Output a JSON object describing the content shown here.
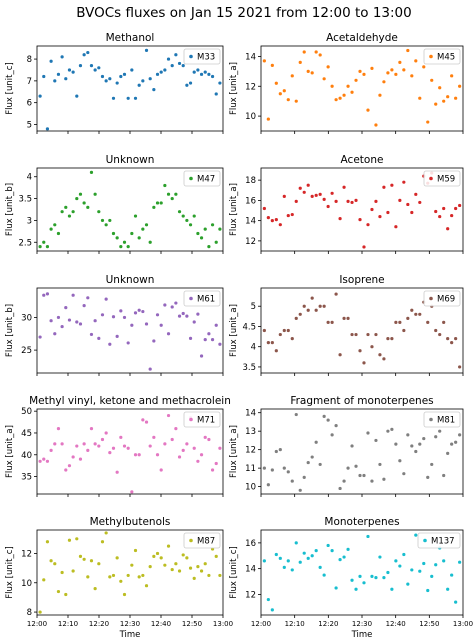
{
  "figure": {
    "suptitle": "BVOCs fluxes on Jan 15 2021 from 12:00 to 13:00"
  },
  "time_ticks": [
    "12:00",
    "12:10",
    "12:20",
    "12:30",
    "12:40",
    "12:50",
    "13:00"
  ],
  "xlabel": "Time",
  "chart_data": [
    {
      "type": "scatter",
      "title": "Methanol",
      "legend": "M33",
      "ylabel": "Flux [unit_c]",
      "color": "#1f77b4",
      "ylim": [
        4.7,
        8.6
      ],
      "yticks": [
        5,
        6,
        7,
        8
      ],
      "y": [
        6.3,
        7.2,
        4.8,
        7.9,
        7.0,
        7.3,
        8.1,
        7.1,
        7.5,
        7.4,
        6.3,
        7.7,
        8.2,
        8.3,
        7.7,
        7.5,
        7.6,
        7.2,
        7.0,
        7.1,
        6.2,
        6.9,
        7.2,
        7.3,
        6.2,
        7.5,
        6.2,
        6.8,
        7.0,
        8.4,
        7.1,
        6.6,
        7.3,
        7.4,
        7.5,
        8.0,
        7.7,
        8.2,
        7.8,
        7.7,
        6.8,
        6.9,
        7.4,
        7.5,
        7.3,
        7.4,
        7.3,
        7.2,
        6.4,
        6.9
      ]
    },
    {
      "type": "scatter",
      "title": "Acetaldehyde",
      "legend": "M45",
      "ylabel": "Flux [unit_a]",
      "color": "#ff7f0e",
      "ylim": [
        9.0,
        14.7
      ],
      "yticks": [
        10,
        12,
        14
      ],
      "y": [
        13.7,
        9.8,
        13.4,
        12.2,
        11.5,
        11.7,
        11.1,
        12.7,
        11.0,
        13.6,
        14.3,
        13.0,
        12.9,
        14.3,
        14.1,
        12.5,
        13.3,
        12.0,
        11.1,
        11.2,
        11.4,
        12.0,
        11.6,
        12.4,
        13.0,
        12.8,
        10.4,
        13.2,
        9.4,
        11.4,
        12.3,
        12.9,
        13.1,
        12.8,
        13.6,
        13.1,
        14.4,
        12.7,
        13.7,
        11.2,
        13.3,
        9.6,
        12.4,
        10.8,
        11.9,
        11.0,
        11.3,
        12.7,
        11.2,
        12.0
      ]
    },
    {
      "type": "scatter",
      "title": "Unknown",
      "legend": "M47",
      "ylabel": "Flux [unit_b]",
      "color": "#2ca02c",
      "ylim": [
        2.3,
        4.2
      ],
      "yticks": [
        2.5,
        3.0,
        3.5,
        4.0
      ],
      "y": [
        2.4,
        2.5,
        2.4,
        2.8,
        2.9,
        2.7,
        3.2,
        3.3,
        3.1,
        3.2,
        3.5,
        3.6,
        3.4,
        3.3,
        4.1,
        3.6,
        3.2,
        3.0,
        2.9,
        3.0,
        2.7,
        2.6,
        2.4,
        2.5,
        2.4,
        2.7,
        3.1,
        2.6,
        2.8,
        2.9,
        2.5,
        3.3,
        3.4,
        3.4,
        3.8,
        3.6,
        3.5,
        3.6,
        3.2,
        3.1,
        3.0,
        2.9,
        3.1,
        2.7,
        2.6,
        2.8,
        2.4,
        2.9,
        2.5,
        2.8
      ]
    },
    {
      "type": "scatter",
      "title": "Acetone",
      "legend": "M59",
      "ylabel": "Flux [unit_a]",
      "color": "#d62728",
      "ylim": [
        11.0,
        19.2
      ],
      "yticks": [
        12,
        14,
        16,
        18
      ],
      "y": [
        15.2,
        14.3,
        14.0,
        14.1,
        13.6,
        16.4,
        14.5,
        14.6,
        15.9,
        17.2,
        16.8,
        17.5,
        16.4,
        16.5,
        16.6,
        16.1,
        15.4,
        16.7,
        15.9,
        14.2,
        17.3,
        15.9,
        15.8,
        16.0,
        14.1,
        11.4,
        13.6,
        15.1,
        15.9,
        14.4,
        17.3,
        14.8,
        17.5,
        13.4,
        16.0,
        17.8,
        15.6,
        14.8,
        16.6,
        15.8,
        18.4,
        17.7,
        18.7,
        14.9,
        14.4,
        15.2,
        13.2,
        14.5,
        15.2,
        15.5
      ]
    },
    {
      "type": "scatter",
      "title": "Unknown",
      "legend": "M61",
      "ylabel": "Flux [unit_b]",
      "color": "#9467bd",
      "ylim": [
        21.5,
        34.5
      ],
      "yticks": [
        25,
        30
      ],
      "y": [
        27.0,
        33.4,
        33.6,
        29.5,
        27.5,
        30.0,
        28.6,
        31.5,
        29.6,
        33.4,
        29.3,
        29.0,
        31.8,
        33.0,
        27.4,
        29.5,
        26.8,
        30.4,
        32.8,
        25.9,
        30.1,
        27.1,
        31.0,
        30.0,
        26.1,
        28.8,
        30.7,
        31.1,
        30.9,
        29.0,
        22.1,
        26.4,
        30.4,
        28.8,
        31.9,
        27.5,
        31.6,
        32.2,
        30.2,
        30.6,
        30.2,
        26.8,
        29.3,
        30.5,
        24.1,
        26.6,
        27.5,
        26.6,
        28.8,
        25.9
      ]
    },
    {
      "type": "scatter",
      "title": "Isoprene",
      "legend": "M69",
      "ylabel": "Flux [unit_a]",
      "color": "#8c564b",
      "ylim": [
        3.35,
        5.45
      ],
      "yticks": [
        3.5,
        4.0,
        4.5,
        5.0
      ],
      "y": [
        4.4,
        4.1,
        4.1,
        3.9,
        4.3,
        4.4,
        4.4,
        4.2,
        4.7,
        4.8,
        5.0,
        4.9,
        5.2,
        4.9,
        5.0,
        5.0,
        4.6,
        4.6,
        5.3,
        3.8,
        4.7,
        4.7,
        4.3,
        4.3,
        3.9,
        3.6,
        4.3,
        4.0,
        4.3,
        3.8,
        3.7,
        4.2,
        4.2,
        4.6,
        4.6,
        4.4,
        4.7,
        4.9,
        4.8,
        4.8,
        5.1,
        4.6,
        5.0,
        4.4,
        4.3,
        4.6,
        4.2,
        4.1,
        4.2,
        3.5
      ]
    },
    {
      "type": "scatter",
      "title": "Methyl vinyl, ketone and methacrolein",
      "legend": "M71",
      "ylabel": "Flux [unit_a]",
      "color": "#e377c2",
      "ylim": [
        31.0,
        50.5
      ],
      "yticks": [
        35,
        40,
        45,
        50
      ],
      "y": [
        38.5,
        39.0,
        38.5,
        41.0,
        42.5,
        46.0,
        42.5,
        36.5,
        37.5,
        39.5,
        42.0,
        39.0,
        42.5,
        41.0,
        46.0,
        42.5,
        42.0,
        43.5,
        45.0,
        40.5,
        41.5,
        36.0,
        44.0,
        42.0,
        41.5,
        31.5,
        40.0,
        40.0,
        48.0,
        47.5,
        42.0,
        44.0,
        40.0,
        36.5,
        42.5,
        49.0,
        43.5,
        46.0,
        39.5,
        41.0,
        42.5,
        48.5,
        41.5,
        38.5,
        40.0,
        44.0,
        43.5,
        36.5,
        38.0,
        41.5
      ]
    },
    {
      "type": "scatter",
      "title": "Fragment of monoterpenes",
      "legend": "M81",
      "ylabel": "Flux [unit_a]",
      "color": "#7f7f7f",
      "ylim": [
        9.6,
        14.2
      ],
      "yticks": [
        10,
        11,
        12,
        13,
        14
      ],
      "y": [
        11.0,
        10.1,
        10.9,
        11.9,
        12.0,
        11.0,
        10.8,
        10.3,
        13.9,
        9.8,
        10.5,
        11.3,
        11.6,
        12.4,
        11.2,
        13.8,
        13.6,
        12.8,
        13.3,
        9.9,
        10.3,
        11.0,
        12.2,
        11.1,
        10.6,
        10.6,
        12.9,
        10.3,
        12.5,
        11.2,
        10.4,
        13.0,
        13.1,
        12.3,
        11.4,
        10.7,
        12.8,
        12.2,
        11.9,
        12.3,
        12.6,
        10.5,
        11.2,
        12.7,
        13.0,
        10.6,
        11.8,
        12.3,
        12.4,
        12.8
      ]
    },
    {
      "type": "scatter",
      "title": "Methylbutenols",
      "legend": "M87",
      "ylabel": "Flux [unit_c]",
      "color": "#bcbd22",
      "ylim": [
        7.8,
        13.6
      ],
      "yticks": [
        8,
        10,
        12
      ],
      "y": [
        8.0,
        10.2,
        12.8,
        11.5,
        11.3,
        9.4,
        10.7,
        9.2,
        12.9,
        10.8,
        13.0,
        11.8,
        11.6,
        10.4,
        11.5,
        9.6,
        11.3,
        12.8,
        13.4,
        10.4,
        10.5,
        11.7,
        10.1,
        9.2,
        10.5,
        11.2,
        12.2,
        10.4,
        10.5,
        9.8,
        11.1,
        11.8,
        12.0,
        11.7,
        11.2,
        12.5,
        10.9,
        11.3,
        10.8,
        11.9,
        11.7,
        11.0,
        10.3,
        11.1,
        10.8,
        11.3,
        10.5,
        12.3,
        11.8,
        10.5
      ]
    },
    {
      "type": "scatter",
      "title": "Monoterpenes",
      "legend": "M137",
      "ylabel": "Flux [unit_c]",
      "color": "#17becf",
      "ylim": [
        10.4,
        17.0
      ],
      "yticks": [
        12,
        14,
        16
      ],
      "y": [
        14.6,
        11.6,
        10.8,
        15.1,
        14.8,
        14.1,
        14.6,
        13.9,
        16.0,
        14.5,
        15.2,
        14.8,
        15.0,
        15.4,
        14.1,
        13.5,
        15.8,
        15.4,
        12.5,
        14.7,
        14.9,
        15.5,
        13.1,
        12.4,
        13.4,
        12.9,
        16.5,
        13.4,
        13.3,
        14.9,
        13.3,
        13.7,
        12.4,
        14.6,
        14.2,
        15.1,
        12.8,
        13.9,
        16.6,
        13.8,
        14.4,
        12.3,
        13.4,
        14.3,
        15.6,
        14.6,
        12.4,
        13.5,
        11.4,
        14.5
      ]
    }
  ]
}
